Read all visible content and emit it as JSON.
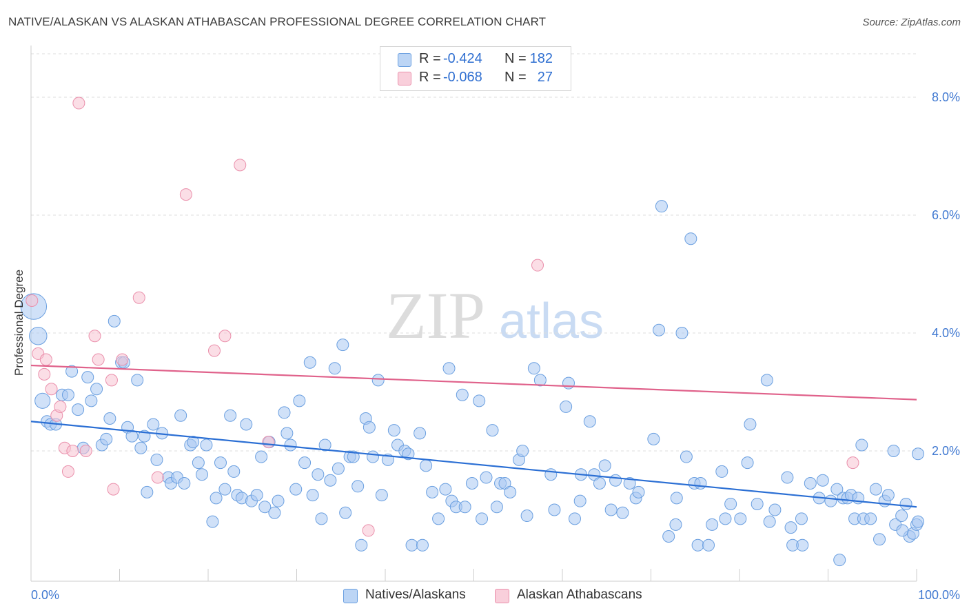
{
  "header": {
    "title": "NATIVE/ALASKAN VS ALASKAN ATHABASCAN PROFESSIONAL DEGREE CORRELATION CHART",
    "source": "Source: ZipAtlas.com"
  },
  "watermark": {
    "part1": "ZIP",
    "part2": "atlas"
  },
  "legend": {
    "rows": [
      {
        "r_label": "R =",
        "r_value": "-0.424",
        "n_label": "N =",
        "n_value": "182",
        "color": "#7fb0ee"
      },
      {
        "r_label": "R =",
        "r_value": "-0.068",
        "n_label": "N =",
        "n_value": "27",
        "color": "#f3a4bb"
      }
    ]
  },
  "bottom_legend": [
    {
      "label": "Natives/Alaskans",
      "color": "#7fb0ee"
    },
    {
      "label": "Alaskan Athabascans",
      "color": "#f3a4bb"
    }
  ],
  "colors": {
    "blue_fill": "#a9c9f2",
    "blue_stroke": "#6a9fe0",
    "blue_line": "#2b6fd4",
    "pink_fill": "#f7c3d2",
    "pink_stroke": "#ea8fab",
    "pink_line": "#e0628b",
    "tick_text": "#3f78d1",
    "grid": "#dcdcdc"
  },
  "chart_data": {
    "type": "scatter",
    "title": "NATIVE/ALASKAN VS ALASKAN ATHABASCAN PROFESSIONAL DEGREE CORRELATION CHART",
    "xlabel": "",
    "ylabel": "Professional Degree",
    "xlim": [
      0,
      100
    ],
    "ylim": [
      0,
      8.2
    ],
    "x_tick_labels": [
      "0.0%",
      "100.0%"
    ],
    "y_ticks": [
      2,
      4,
      6,
      8
    ],
    "y_tick_labels": [
      "2.0%",
      "4.0%",
      "6.0%",
      "8.0%"
    ],
    "grid": "horizontal dashed",
    "legend_position": "top-center",
    "series": [
      {
        "name": "Natives/Alaskans",
        "trend": {
          "x": [
            0,
            100
          ],
          "y": [
            2.5,
            1.05
          ]
        },
        "points": [
          [
            0.3,
            4.45,
            2.2
          ],
          [
            0.8,
            3.95,
            1.5
          ],
          [
            1.3,
            2.85,
            1.3
          ],
          [
            1.8,
            2.5,
            1
          ],
          [
            2.2,
            2.45,
            1
          ],
          [
            2.8,
            2.45,
            1
          ],
          [
            3.5,
            2.95,
            1
          ],
          [
            4.2,
            2.95,
            1
          ],
          [
            4.6,
            3.35,
            1
          ],
          [
            5.3,
            2.7,
            1
          ],
          [
            5.9,
            2.05,
            1
          ],
          [
            6.4,
            3.25,
            1
          ],
          [
            6.8,
            2.85,
            1
          ],
          [
            7.4,
            3.05,
            1
          ],
          [
            8.0,
            2.1,
            1
          ],
          [
            8.5,
            2.2,
            1
          ],
          [
            8.9,
            2.55,
            1
          ],
          [
            9.4,
            4.2,
            1
          ],
          [
            10.2,
            3.5,
            1
          ],
          [
            10.5,
            3.5,
            1
          ],
          [
            10.9,
            2.4,
            1
          ],
          [
            11.4,
            2.25,
            1
          ],
          [
            12.0,
            3.2,
            1
          ],
          [
            12.4,
            2.05,
            1
          ],
          [
            12.8,
            2.25,
            1
          ],
          [
            13.1,
            1.3,
            1
          ],
          [
            13.8,
            2.45,
            1
          ],
          [
            14.2,
            1.85,
            1
          ],
          [
            14.8,
            2.3,
            1
          ],
          [
            15.5,
            1.55,
            1
          ],
          [
            15.8,
            1.45,
            1
          ],
          [
            16.5,
            1.55,
            1
          ],
          [
            16.9,
            2.6,
            1
          ],
          [
            17.3,
            1.45,
            1
          ],
          [
            18.0,
            2.1,
            1
          ],
          [
            18.3,
            2.15,
            1
          ],
          [
            18.9,
            1.8,
            1
          ],
          [
            19.3,
            1.6,
            1
          ],
          [
            19.8,
            2.1,
            1
          ],
          [
            20.5,
            0.8,
            1
          ],
          [
            20.9,
            1.2,
            1
          ],
          [
            21.4,
            1.8,
            1
          ],
          [
            21.9,
            1.35,
            1
          ],
          [
            22.5,
            2.6,
            1
          ],
          [
            22.9,
            1.65,
            1
          ],
          [
            23.3,
            1.25,
            1
          ],
          [
            23.8,
            1.2,
            1
          ],
          [
            24.3,
            2.45,
            1
          ],
          [
            24.9,
            1.15,
            1
          ],
          [
            25.5,
            1.25,
            1
          ],
          [
            26.0,
            1.9,
            1
          ],
          [
            26.4,
            1.05,
            1
          ],
          [
            26.9,
            2.15,
            1
          ],
          [
            27.5,
            0.95,
            1
          ],
          [
            27.9,
            1.15,
            1
          ],
          [
            28.6,
            2.65,
            1
          ],
          [
            28.9,
            2.3,
            1
          ],
          [
            29.3,
            2.1,
            1
          ],
          [
            29.9,
            1.35,
            1
          ],
          [
            30.3,
            2.85,
            1
          ],
          [
            30.9,
            1.8,
            1
          ],
          [
            31.5,
            3.5,
            1
          ],
          [
            31.8,
            1.25,
            1
          ],
          [
            32.4,
            1.6,
            1
          ],
          [
            32.8,
            0.85,
            1
          ],
          [
            33.2,
            2.1,
            1
          ],
          [
            33.8,
            1.5,
            1
          ],
          [
            34.3,
            3.4,
            1
          ],
          [
            34.7,
            1.7,
            1
          ],
          [
            35.2,
            3.8,
            1
          ],
          [
            35.5,
            0.95,
            1
          ],
          [
            36.0,
            1.9,
            1
          ],
          [
            36.4,
            1.9,
            1
          ],
          [
            36.9,
            1.4,
            1
          ],
          [
            37.3,
            0.4,
            1
          ],
          [
            37.8,
            2.55,
            1
          ],
          [
            38.2,
            2.4,
            1
          ],
          [
            38.6,
            1.9,
            1
          ],
          [
            39.2,
            3.2,
            1
          ],
          [
            39.6,
            1.25,
            1
          ],
          [
            40.3,
            1.85,
            1
          ],
          [
            41.0,
            2.35,
            1
          ],
          [
            41.4,
            2.1,
            1
          ],
          [
            42.2,
            2.0,
            1
          ],
          [
            42.6,
            1.95,
            1
          ],
          [
            43.0,
            0.4,
            1
          ],
          [
            43.9,
            2.3,
            1
          ],
          [
            44.2,
            0.4,
            1
          ],
          [
            44.6,
            1.75,
            1
          ],
          [
            45.3,
            1.3,
            1
          ],
          [
            46.0,
            0.85,
            1
          ],
          [
            46.8,
            1.35,
            1
          ],
          [
            47.2,
            3.4,
            1
          ],
          [
            47.5,
            1.15,
            1
          ],
          [
            48.0,
            1.05,
            1
          ],
          [
            48.7,
            2.95,
            1
          ],
          [
            49.0,
            1.05,
            1
          ],
          [
            49.8,
            1.45,
            1
          ],
          [
            50.6,
            2.85,
            1
          ],
          [
            50.9,
            0.85,
            1
          ],
          [
            51.4,
            1.55,
            1
          ],
          [
            52.1,
            2.35,
            1
          ],
          [
            52.6,
            1.05,
            1
          ],
          [
            53.0,
            1.45,
            1
          ],
          [
            53.5,
            1.45,
            1
          ],
          [
            54.1,
            1.3,
            1
          ],
          [
            55.1,
            1.85,
            1
          ],
          [
            55.5,
            2.0,
            1
          ],
          [
            56.0,
            0.9,
            1
          ],
          [
            56.8,
            3.4,
            1
          ],
          [
            57.5,
            3.2,
            1
          ],
          [
            58.7,
            1.6,
            1
          ],
          [
            59.1,
            1.0,
            1
          ],
          [
            60.4,
            2.75,
            1
          ],
          [
            60.7,
            3.15,
            1
          ],
          [
            61.4,
            0.85,
            1
          ],
          [
            62.0,
            1.15,
            1
          ],
          [
            62.1,
            1.6,
            1
          ],
          [
            63.1,
            2.5,
            1
          ],
          [
            63.6,
            1.6,
            1
          ],
          [
            64.2,
            1.45,
            1
          ],
          [
            64.8,
            1.75,
            1
          ],
          [
            65.5,
            1.0,
            1
          ],
          [
            66.0,
            1.5,
            1
          ],
          [
            66.8,
            0.95,
            1
          ],
          [
            67.6,
            1.45,
            1
          ],
          [
            68.3,
            1.2,
            1
          ],
          [
            68.6,
            1.3,
            1
          ],
          [
            70.3,
            2.2,
            1
          ],
          [
            70.9,
            4.05,
            1
          ],
          [
            71.2,
            6.15,
            1
          ],
          [
            72.0,
            0.55,
            1
          ],
          [
            72.8,
            0.75,
            1
          ],
          [
            72.9,
            1.2,
            1
          ],
          [
            73.5,
            4.0,
            1
          ],
          [
            74.0,
            1.9,
            1
          ],
          [
            74.5,
            5.6,
            1
          ],
          [
            74.9,
            1.45,
            1
          ],
          [
            75.3,
            0.4,
            1
          ],
          [
            75.6,
            1.45,
            1
          ],
          [
            76.5,
            0.4,
            1
          ],
          [
            76.9,
            0.75,
            1
          ],
          [
            78.0,
            1.65,
            1
          ],
          [
            78.4,
            0.85,
            1
          ],
          [
            79.0,
            1.1,
            1
          ],
          [
            80.1,
            0.85,
            1
          ],
          [
            80.9,
            1.8,
            1
          ],
          [
            81.2,
            2.45,
            1
          ],
          [
            82.0,
            1.1,
            1
          ],
          [
            83.1,
            3.2,
            1
          ],
          [
            83.4,
            0.8,
            1
          ],
          [
            84.0,
            1.0,
            1
          ],
          [
            85.4,
            1.55,
            1
          ],
          [
            85.8,
            0.7,
            1
          ],
          [
            86.0,
            0.4,
            1
          ],
          [
            87.0,
            0.85,
            1
          ],
          [
            87.1,
            0.4,
            1
          ],
          [
            88.0,
            1.45,
            1
          ],
          [
            89.0,
            1.2,
            1
          ],
          [
            89.4,
            1.5,
            1
          ],
          [
            90.3,
            1.15,
            1
          ],
          [
            91.0,
            1.35,
            1
          ],
          [
            91.3,
            0.15,
            1
          ],
          [
            91.7,
            1.2,
            1
          ],
          [
            92.2,
            1.2,
            1
          ],
          [
            92.6,
            1.25,
            1
          ],
          [
            93.0,
            0.85,
            1
          ],
          [
            93.4,
            1.2,
            1
          ],
          [
            93.8,
            2.1,
            1
          ],
          [
            94.0,
            0.85,
            1
          ],
          [
            94.8,
            0.85,
            1
          ],
          [
            95.4,
            1.35,
            1
          ],
          [
            95.8,
            0.5,
            1
          ],
          [
            96.4,
            1.15,
            1
          ],
          [
            96.8,
            1.25,
            1
          ],
          [
            97.4,
            2.0,
            1
          ],
          [
            97.6,
            0.75,
            1
          ],
          [
            98.3,
            0.9,
            1
          ],
          [
            98.8,
            1.1,
            1
          ],
          [
            99.2,
            0.55,
            1
          ],
          [
            99.6,
            0.6,
            1
          ],
          [
            100.0,
            0.75,
            1
          ],
          [
            100.6,
            1.95,
            1
          ],
          [
            101.0,
            0.8,
            1
          ],
          [
            98.4,
            0.65,
            1
          ]
        ]
      },
      {
        "name": "Alaskan Athabascans",
        "trend": {
          "x": [
            0,
            100
          ],
          "y": [
            3.45,
            2.87
          ]
        },
        "points": [
          [
            0.1,
            4.55,
            1
          ],
          [
            0.8,
            3.65,
            1
          ],
          [
            1.5,
            3.3,
            1
          ],
          [
            1.7,
            3.55,
            1
          ],
          [
            2.3,
            3.05,
            1
          ],
          [
            2.9,
            2.6,
            1
          ],
          [
            3.3,
            2.75,
            1
          ],
          [
            3.8,
            2.05,
            1
          ],
          [
            4.2,
            1.65,
            1
          ],
          [
            4.7,
            2.0,
            1
          ],
          [
            6.2,
            2.0,
            1
          ],
          [
            7.2,
            3.95,
            1
          ],
          [
            7.6,
            3.55,
            1
          ],
          [
            5.4,
            7.9,
            1
          ],
          [
            9.1,
            3.2,
            1
          ],
          [
            9.3,
            1.35,
            1
          ],
          [
            10.3,
            3.55,
            1
          ],
          [
            12.2,
            4.6,
            1
          ],
          [
            14.3,
            1.55,
            1
          ],
          [
            17.5,
            6.35,
            1
          ],
          [
            20.7,
            3.7,
            1
          ],
          [
            21.9,
            3.95,
            1
          ],
          [
            23.6,
            6.85,
            1
          ],
          [
            26.8,
            2.15,
            1
          ],
          [
            38.1,
            0.65,
            1
          ],
          [
            57.2,
            5.15,
            1
          ],
          [
            92.8,
            1.8,
            1
          ]
        ]
      }
    ]
  }
}
